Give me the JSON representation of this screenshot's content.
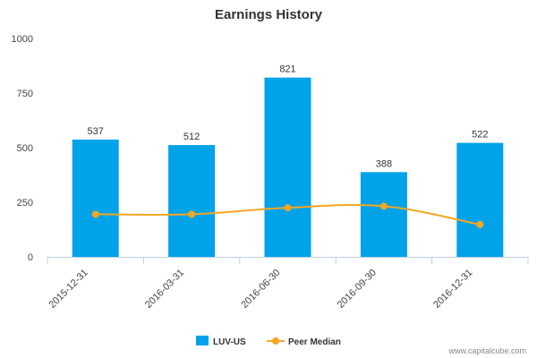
{
  "chart_data": {
    "type": "bar",
    "title": "Earnings History",
    "xlabel": "",
    "ylabel": "",
    "categories": [
      "2015-12-31",
      "2016-03-31",
      "2016-06-30",
      "2016-09-30",
      "2016-12-31"
    ],
    "ylim": [
      0,
      1000
    ],
    "yticks": [
      0,
      250,
      500,
      750,
      1000
    ],
    "series": [
      {
        "name": "LUV-US",
        "type": "bar",
        "color": "#00a2e8",
        "values": [
          537,
          512,
          821,
          388,
          522
        ],
        "data_labels": [
          "537",
          "512",
          "821",
          "388",
          "522"
        ]
      },
      {
        "name": "Peer Median",
        "type": "line",
        "color": "#f5a623",
        "values": [
          195,
          195,
          225,
          232,
          148
        ]
      }
    ],
    "legend": "bottom-center",
    "grid": false
  },
  "footer": {
    "credit": "www.capitalcube.com"
  }
}
